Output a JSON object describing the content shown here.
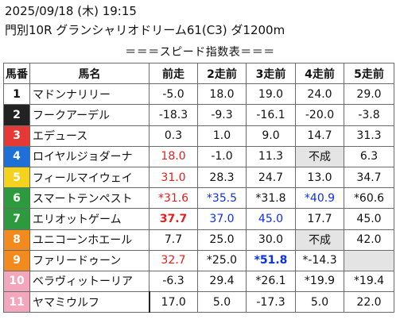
{
  "header": {
    "line1": "2025/09/18 (木) 19:15",
    "line2": "門別10R グランシャリオドリーム61(C3) ダ1200m"
  },
  "subtitle": "＝＝＝スピード指数表＝＝＝",
  "columns": [
    "馬番",
    "馬名",
    "前走",
    "2走前",
    "3走前",
    "4走前",
    "5走前"
  ],
  "colors": {
    "gate1": "#ffffff",
    "gate2": "#222222",
    "gate3": "#e53935",
    "gate4": "#1e6fd6",
    "gate5": "#f5d21e",
    "gate6": "#2e9a3e",
    "gate7": "#f28a1e",
    "gate8": "#f3a7bd",
    "red": "#e02020",
    "blue": "#1030e0",
    "not_run_bg": "#e4e4e4"
  },
  "rows": [
    {
      "num": "1",
      "name": "マドンナリリー",
      "v": [
        "-5.0",
        "18.0",
        "19.0",
        "24.0",
        "29.0"
      ]
    },
    {
      "num": "2",
      "name": "フークアーデル",
      "v": [
        "-18.3",
        "-9.3",
        "-16.1",
        "-20.0",
        "-3.8"
      ]
    },
    {
      "num": "3",
      "name": "エデュース",
      "v": [
        "0.3",
        "1.0",
        "9.0",
        "14.7",
        "31.3"
      ]
    },
    {
      "num": "4",
      "name": "ロイヤルジョダーナ",
      "v": [
        "18.0",
        "-1.0",
        "11.3",
        "不成",
        "6.3"
      ]
    },
    {
      "num": "5",
      "name": "フィールマイウェイ",
      "v": [
        "31.0",
        "28.3",
        "24.7",
        "13.0",
        "34.7"
      ]
    },
    {
      "num": "6",
      "name": "スマートテンペスト",
      "v": [
        "*31.6",
        "*35.5",
        "*31.8",
        "*40.9",
        "*60.6"
      ]
    },
    {
      "num": "7",
      "name": "エリオットゲーム",
      "v": [
        "37.7",
        "37.0",
        "45.0",
        "17.7",
        "45.0"
      ]
    },
    {
      "num": "8",
      "name": "ユニコーンホエール",
      "v": [
        "7.7",
        "25.0",
        "30.0",
        "不成",
        "42.0"
      ]
    },
    {
      "num": "9",
      "name": "ファリードゥーン",
      "v": [
        "32.7",
        "*25.0",
        "*51.8",
        "*-14.3",
        ""
      ]
    },
    {
      "num": "10",
      "name": "ベラヴィットーリア",
      "v": [
        "-6.3",
        "29.4",
        "*26.1",
        "*19.9",
        "*19.4"
      ]
    },
    {
      "num": "11",
      "name": "ヤマミウルフ",
      "v": [
        "17.0",
        "5.0",
        "-17.3",
        "5.0",
        "22.0"
      ]
    }
  ]
}
